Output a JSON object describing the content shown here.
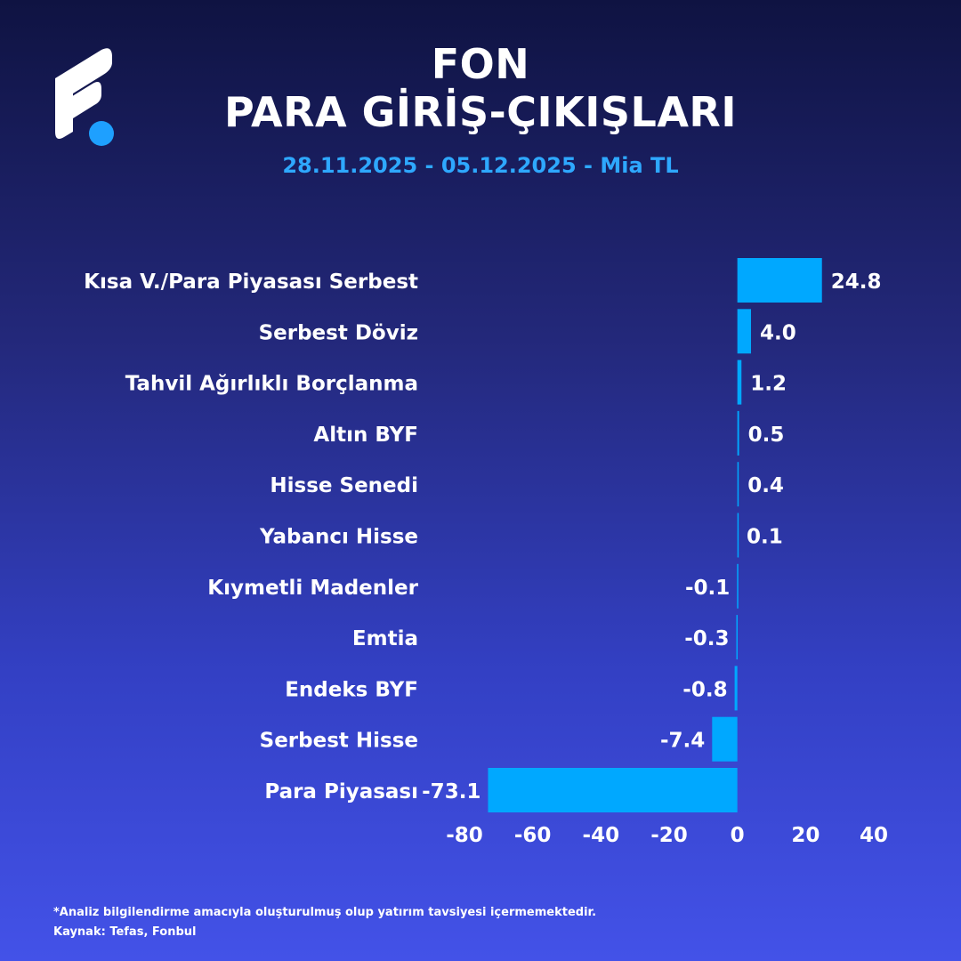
{
  "header": {
    "title_line1": "FON",
    "title_line2": "PARA GİRİŞ-ÇIKIŞLARI",
    "subtitle": "28.11.2025 - 05.12.2025 - Mia TL"
  },
  "colors": {
    "bar": "#00a8ff",
    "accent": "#2ea8ff",
    "text": "#ffffff"
  },
  "chart_data": {
    "type": "bar",
    "orientation": "horizontal",
    "categories": [
      "Kısa V./Para Piyasası Serbest",
      "Serbest Döviz",
      "Tahvil Ağırlıklı Borçlanma",
      "Altın BYF",
      "Hisse Senedi",
      "Yabancı Hisse",
      "Kıymetli Madenler",
      "Emtia",
      "Endeks BYF",
      "Serbest Hisse",
      "Para Piyasası"
    ],
    "values": [
      24.8,
      4.0,
      1.2,
      0.5,
      0.4,
      0.1,
      -0.1,
      -0.3,
      -0.8,
      -7.4,
      -73.1
    ],
    "data_labels": [
      "24.8",
      "4.0",
      "1.2",
      "0.5",
      "0.4",
      "0.1",
      "-0.1",
      "-0.3",
      "-0.8",
      "-7.4",
      "-73.1"
    ],
    "xlim": [
      -80,
      40
    ],
    "x_ticks": [
      "-80",
      "-60",
      "-40",
      "-20",
      "0",
      "20",
      "40"
    ],
    "grid": false,
    "legend": "none"
  },
  "footer": {
    "disclaimer": "*Analiz bilgilendirme amacıyla oluşturulmuş olup yatırım tavsiyesi içermemektedir.",
    "source": "Kaynak: Tefas, Fonbul"
  }
}
